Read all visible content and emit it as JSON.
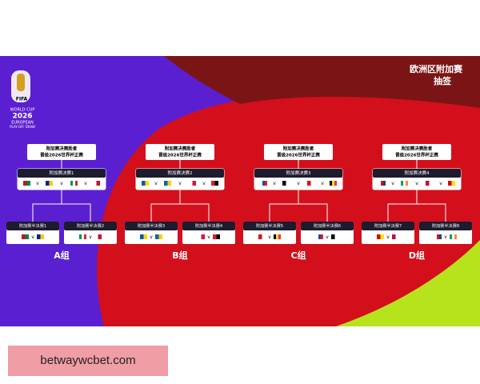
{
  "header": {
    "title_lines": [
      "欧洲区附加赛",
      "抽签"
    ]
  },
  "logo": {
    "brand": "FIFA",
    "lines": [
      "WORLD CUP",
      "2026",
      "EUROPEAN",
      "PLAY-OFF DRAW"
    ]
  },
  "versus": "v",
  "groups": [
    {
      "label": "A组",
      "winner": [
        "附加赛决赛胜者",
        "晋级2026世界杯正赛"
      ],
      "final": "附加赛决赛1",
      "semis": [
        "附加赛半决赛1",
        "附加赛半决赛2"
      ]
    },
    {
      "label": "B组",
      "winner": [
        "附加赛决赛胜者",
        "晋级2026世界杯正赛"
      ],
      "final": "附加赛决赛2",
      "semis": [
        "附加赛半决赛3",
        "附加赛半决赛4"
      ]
    },
    {
      "label": "C组",
      "winner": [
        "附加赛决赛胜者",
        "晋级2026世界杯正赛"
      ],
      "final": "附加赛决赛3",
      "semis": [
        "附加赛半决赛5",
        "附加赛半决赛6"
      ]
    },
    {
      "label": "D组",
      "winner": [
        "附加赛决赛胜者",
        "晋级2026世界杯正赛"
      ],
      "final": "附加赛决赛4",
      "semis": [
        "附加赛半决赛7",
        "附加赛半决赛8"
      ]
    }
  ],
  "watermark": "betwaywcbet.com"
}
